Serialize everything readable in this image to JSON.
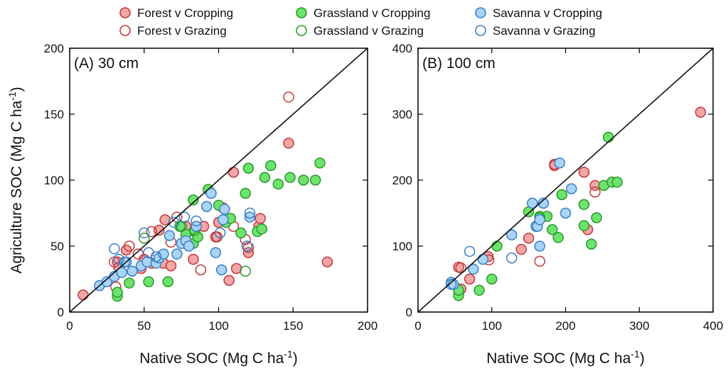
{
  "legend": [
    {
      "label": "Forest v Cropping",
      "fill": "#f4a6a6",
      "stroke": "#c0393b",
      "filled": true
    },
    {
      "label": "Forest v Grazing",
      "fill": "none",
      "stroke": "#c0393b",
      "filled": false
    },
    {
      "label": "Grassland v Cropping",
      "fill": "#6de36d",
      "stroke": "#2a9a2a",
      "filled": true
    },
    {
      "label": "Grassland v Grazing",
      "fill": "none",
      "stroke": "#2a9a2a",
      "filled": false
    },
    {
      "label": "Savanna v Cropping",
      "fill": "#a9d4f5",
      "stroke": "#3a7fc4",
      "filled": true
    },
    {
      "label": "Savanna v Grazing",
      "fill": "none",
      "stroke": "#3a7fc4",
      "filled": false
    }
  ],
  "ylabel": "Agriculture SOC (Mg C ha",
  "ylabel_sup": "-1",
  "ylabel_end": ")",
  "chart_data": [
    {
      "type": "scatter",
      "title": "(A) 30 cm",
      "xlabel": "Native SOC (Mg C ha-1)",
      "ylabel": "Agriculture SOC (Mg C ha-1)",
      "xlim": [
        0,
        200
      ],
      "ylim": [
        0,
        200
      ],
      "xticks": [
        0,
        50,
        100,
        150,
        200
      ],
      "yticks": [
        0,
        50,
        100,
        150,
        200
      ],
      "reference_line": "1:1",
      "series": [
        {
          "name": "Forest v Cropping",
          "points": [
            [
              9,
              13
            ],
            [
              32,
              38
            ],
            [
              33,
              34
            ],
            [
              38,
              47
            ],
            [
              48,
              33
            ],
            [
              50,
              40
            ],
            [
              55,
              37
            ],
            [
              60,
              62
            ],
            [
              63,
              37
            ],
            [
              64,
              70
            ],
            [
              68,
              35
            ],
            [
              78,
              65
            ],
            [
              83,
              40
            ],
            [
              90,
              65
            ],
            [
              98,
              57
            ],
            [
              100,
              68
            ],
            [
              107,
              24
            ],
            [
              110,
              106
            ],
            [
              112,
              33
            ],
            [
              120,
              45
            ],
            [
              127,
              65
            ],
            [
              128,
              71
            ],
            [
              147,
              128
            ],
            [
              173,
              38
            ]
          ]
        },
        {
          "name": "Forest v Grazing",
          "points": [
            [
              30,
              38
            ],
            [
              31,
              19
            ],
            [
              40,
              50
            ],
            [
              46,
              44
            ],
            [
              55,
              61
            ],
            [
              68,
              53
            ],
            [
              72,
              72
            ],
            [
              88,
              32
            ],
            [
              99,
              57
            ],
            [
              103,
              79
            ],
            [
              110,
              65
            ],
            [
              118,
              55
            ],
            [
              120,
              49
            ],
            [
              147,
              163
            ]
          ]
        },
        {
          "name": "Grassland v Cropping",
          "points": [
            [
              32,
              12
            ],
            [
              32,
              15
            ],
            [
              40,
              22
            ],
            [
              53,
              23
            ],
            [
              66,
              23
            ],
            [
              74,
              65
            ],
            [
              78,
              59
            ],
            [
              83,
              52
            ],
            [
              83,
              85
            ],
            [
              84,
              61
            ],
            [
              86,
              57
            ],
            [
              93,
              93
            ],
            [
              100,
              81
            ],
            [
              105,
              68
            ],
            [
              108,
              71
            ],
            [
              115,
              60
            ],
            [
              118,
              90
            ],
            [
              120,
              109
            ],
            [
              126,
              61
            ],
            [
              129,
              63
            ],
            [
              131,
              102
            ],
            [
              135,
              111
            ],
            [
              140,
              97
            ],
            [
              148,
              102
            ],
            [
              157,
              100
            ],
            [
              165,
              100
            ],
            [
              168,
              113
            ]
          ]
        },
        {
          "name": "Grassland v Grazing",
          "points": [
            [
              50,
              56
            ],
            [
              75,
              65
            ],
            [
              84,
              62
            ],
            [
              92,
              80
            ],
            [
              118,
              31
            ]
          ]
        },
        {
          "name": "Savanna v Cropping",
          "points": [
            [
              20,
              20
            ],
            [
              25,
              23
            ],
            [
              30,
              27
            ],
            [
              35,
              30
            ],
            [
              37,
              38
            ],
            [
              42,
              31
            ],
            [
              48,
              35
            ],
            [
              52,
              38
            ],
            [
              58,
              37
            ],
            [
              60,
              41
            ],
            [
              63,
              44
            ],
            [
              67,
              58
            ],
            [
              72,
              44
            ],
            [
              75,
              52
            ],
            [
              78,
              54
            ],
            [
              80,
              50
            ],
            [
              85,
              65
            ],
            [
              92,
              80
            ],
            [
              95,
              90
            ],
            [
              98,
              45
            ],
            [
              102,
              32
            ],
            [
              103,
              70
            ],
            [
              104,
              78
            ],
            [
              121,
              72
            ]
          ]
        },
        {
          "name": "Savanna v Grazing",
          "points": [
            [
              30,
              48
            ],
            [
              33,
              40
            ],
            [
              38,
              38
            ],
            [
              50,
              60
            ],
            [
              53,
              45
            ],
            [
              58,
              42
            ],
            [
              70,
              68
            ],
            [
              77,
              72
            ],
            [
              85,
              69
            ],
            [
              101,
              60
            ],
            [
              119,
              50
            ],
            [
              121,
              75
            ]
          ]
        }
      ]
    },
    {
      "type": "scatter",
      "title": "(B) 100 cm",
      "xlabel": "Native SOC (Mg C ha-1)",
      "xlim": [
        0,
        400
      ],
      "ylim": [
        0,
        400
      ],
      "xticks": [
        0,
        100,
        200,
        300,
        400
      ],
      "yticks": [
        0,
        100,
        200,
        300,
        400
      ],
      "reference_line": "1:1",
      "series": [
        {
          "name": "Forest v Cropping",
          "points": [
            [
              55,
              68
            ],
            [
              58,
              35
            ],
            [
              70,
              50
            ],
            [
              95,
              84
            ],
            [
              140,
              95
            ],
            [
              150,
              112
            ],
            [
              185,
              224
            ],
            [
              225,
              212
            ],
            [
              230,
              125
            ],
            [
              240,
              192
            ],
            [
              383,
              303
            ]
          ]
        },
        {
          "name": "Forest v Grazing",
          "points": [
            [
              58,
              67
            ],
            [
              96,
              79
            ],
            [
              165,
              77
            ],
            [
              185,
              222
            ],
            [
              240,
              182
            ]
          ]
        },
        {
          "name": "Grassland v Cropping",
          "points": [
            [
              55,
              25
            ],
            [
              55,
              33
            ],
            [
              83,
              33
            ],
            [
              100,
              50
            ],
            [
              107,
              100
            ],
            [
              150,
              152
            ],
            [
              160,
              130
            ],
            [
              165,
              145
            ],
            [
              175,
              145
            ],
            [
              182,
              125
            ],
            [
              190,
              113
            ],
            [
              195,
              178
            ],
            [
              225,
              131
            ],
            [
              225,
              163
            ],
            [
              235,
              103
            ],
            [
              242,
              143
            ],
            [
              252,
              192
            ],
            [
              258,
              265
            ],
            [
              263,
              197
            ],
            [
              270,
              197
            ]
          ]
        },
        {
          "name": "Grassland v Grazing",
          "points": [
            [
              165,
              143
            ]
          ]
        },
        {
          "name": "Savanna v Cropping",
          "points": [
            [
              45,
              45
            ],
            [
              48,
              42
            ],
            [
              75,
              65
            ],
            [
              88,
              80
            ],
            [
              127,
              117
            ],
            [
              155,
              165
            ],
            [
              160,
              130
            ],
            [
              162,
              130
            ],
            [
              165,
              140
            ],
            [
              165,
              100
            ],
            [
              170,
              165
            ],
            [
              192,
              226
            ],
            [
              200,
              150
            ],
            [
              208,
              187
            ]
          ]
        },
        {
          "name": "Savanna v Grazing",
          "points": [
            [
              45,
              42
            ],
            [
              70,
              92
            ],
            [
              127,
              82
            ],
            [
              170,
              165
            ]
          ]
        }
      ]
    }
  ]
}
